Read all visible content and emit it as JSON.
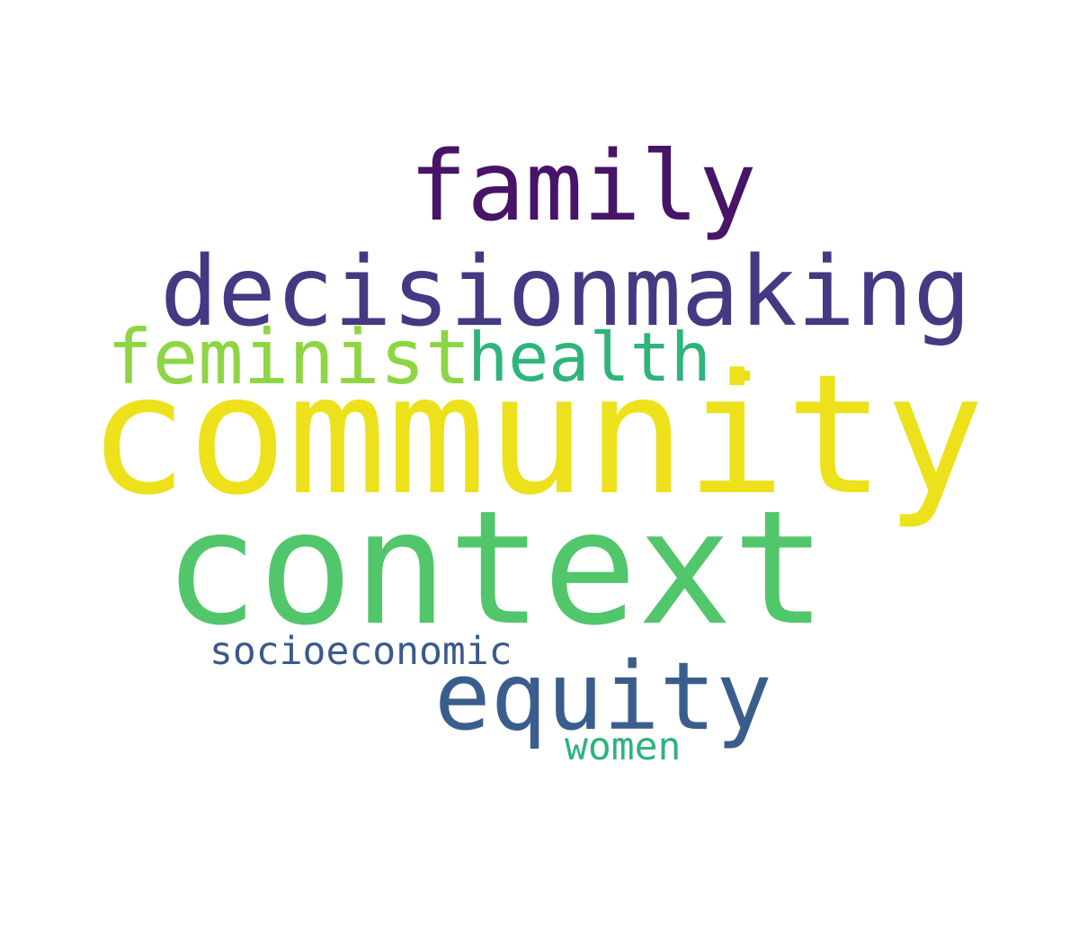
{
  "words": {
    "community": {
      "text": "community",
      "color": "#ede11b"
    },
    "context": {
      "text": "context",
      "color": "#52c66b"
    },
    "decisionmaking": {
      "text": "decisionmaking",
      "color": "#443983"
    },
    "family": {
      "text": "family",
      "color": "#471468"
    },
    "equity": {
      "text": "equity",
      "color": "#3a5e8c"
    },
    "feminist": {
      "text": "feminist",
      "color": "#8ed544"
    },
    "health": {
      "text": "health",
      "color": "#2fb47c"
    },
    "period": {
      "text": ".",
      "color": "#e2e418"
    },
    "socioeconomic": {
      "text": "socioeconomic",
      "color": "#3b5a8b"
    },
    "women": {
      "text": "women",
      "color": "#2eb37c"
    }
  }
}
